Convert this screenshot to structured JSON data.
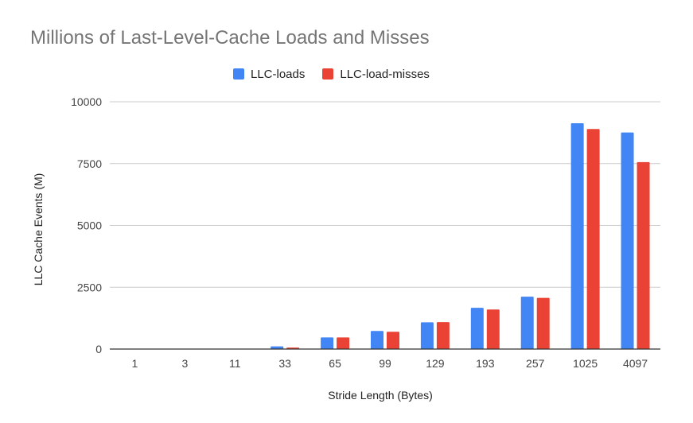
{
  "colors": {
    "loads": "#4285F4",
    "misses": "#EA4335",
    "grid": "#cccccc",
    "axis": "#333333",
    "title": "#757575"
  },
  "chart_data": {
    "type": "bar",
    "title": "Millions of Last-Level-Cache Loads and Misses",
    "xlabel": "Stride Length (Bytes)",
    "ylabel": "LLC Cache Events (M)",
    "ylim": [
      0,
      10000
    ],
    "yticks": [
      0,
      2500,
      5000,
      7500,
      10000
    ],
    "grid": true,
    "legend_position": "top",
    "categories": [
      "1",
      "3",
      "11",
      "33",
      "65",
      "99",
      "129",
      "193",
      "257",
      "1025",
      "4097"
    ],
    "series": [
      {
        "name": "LLC-loads",
        "values": [
          2,
          3,
          8,
          110,
          470,
          730,
          1080,
          1670,
          2120,
          9130,
          8760
        ]
      },
      {
        "name": "LLC-load-misses",
        "values": [
          1,
          2,
          5,
          60,
          470,
          700,
          1090,
          1600,
          2070,
          8900,
          7560
        ]
      }
    ]
  }
}
